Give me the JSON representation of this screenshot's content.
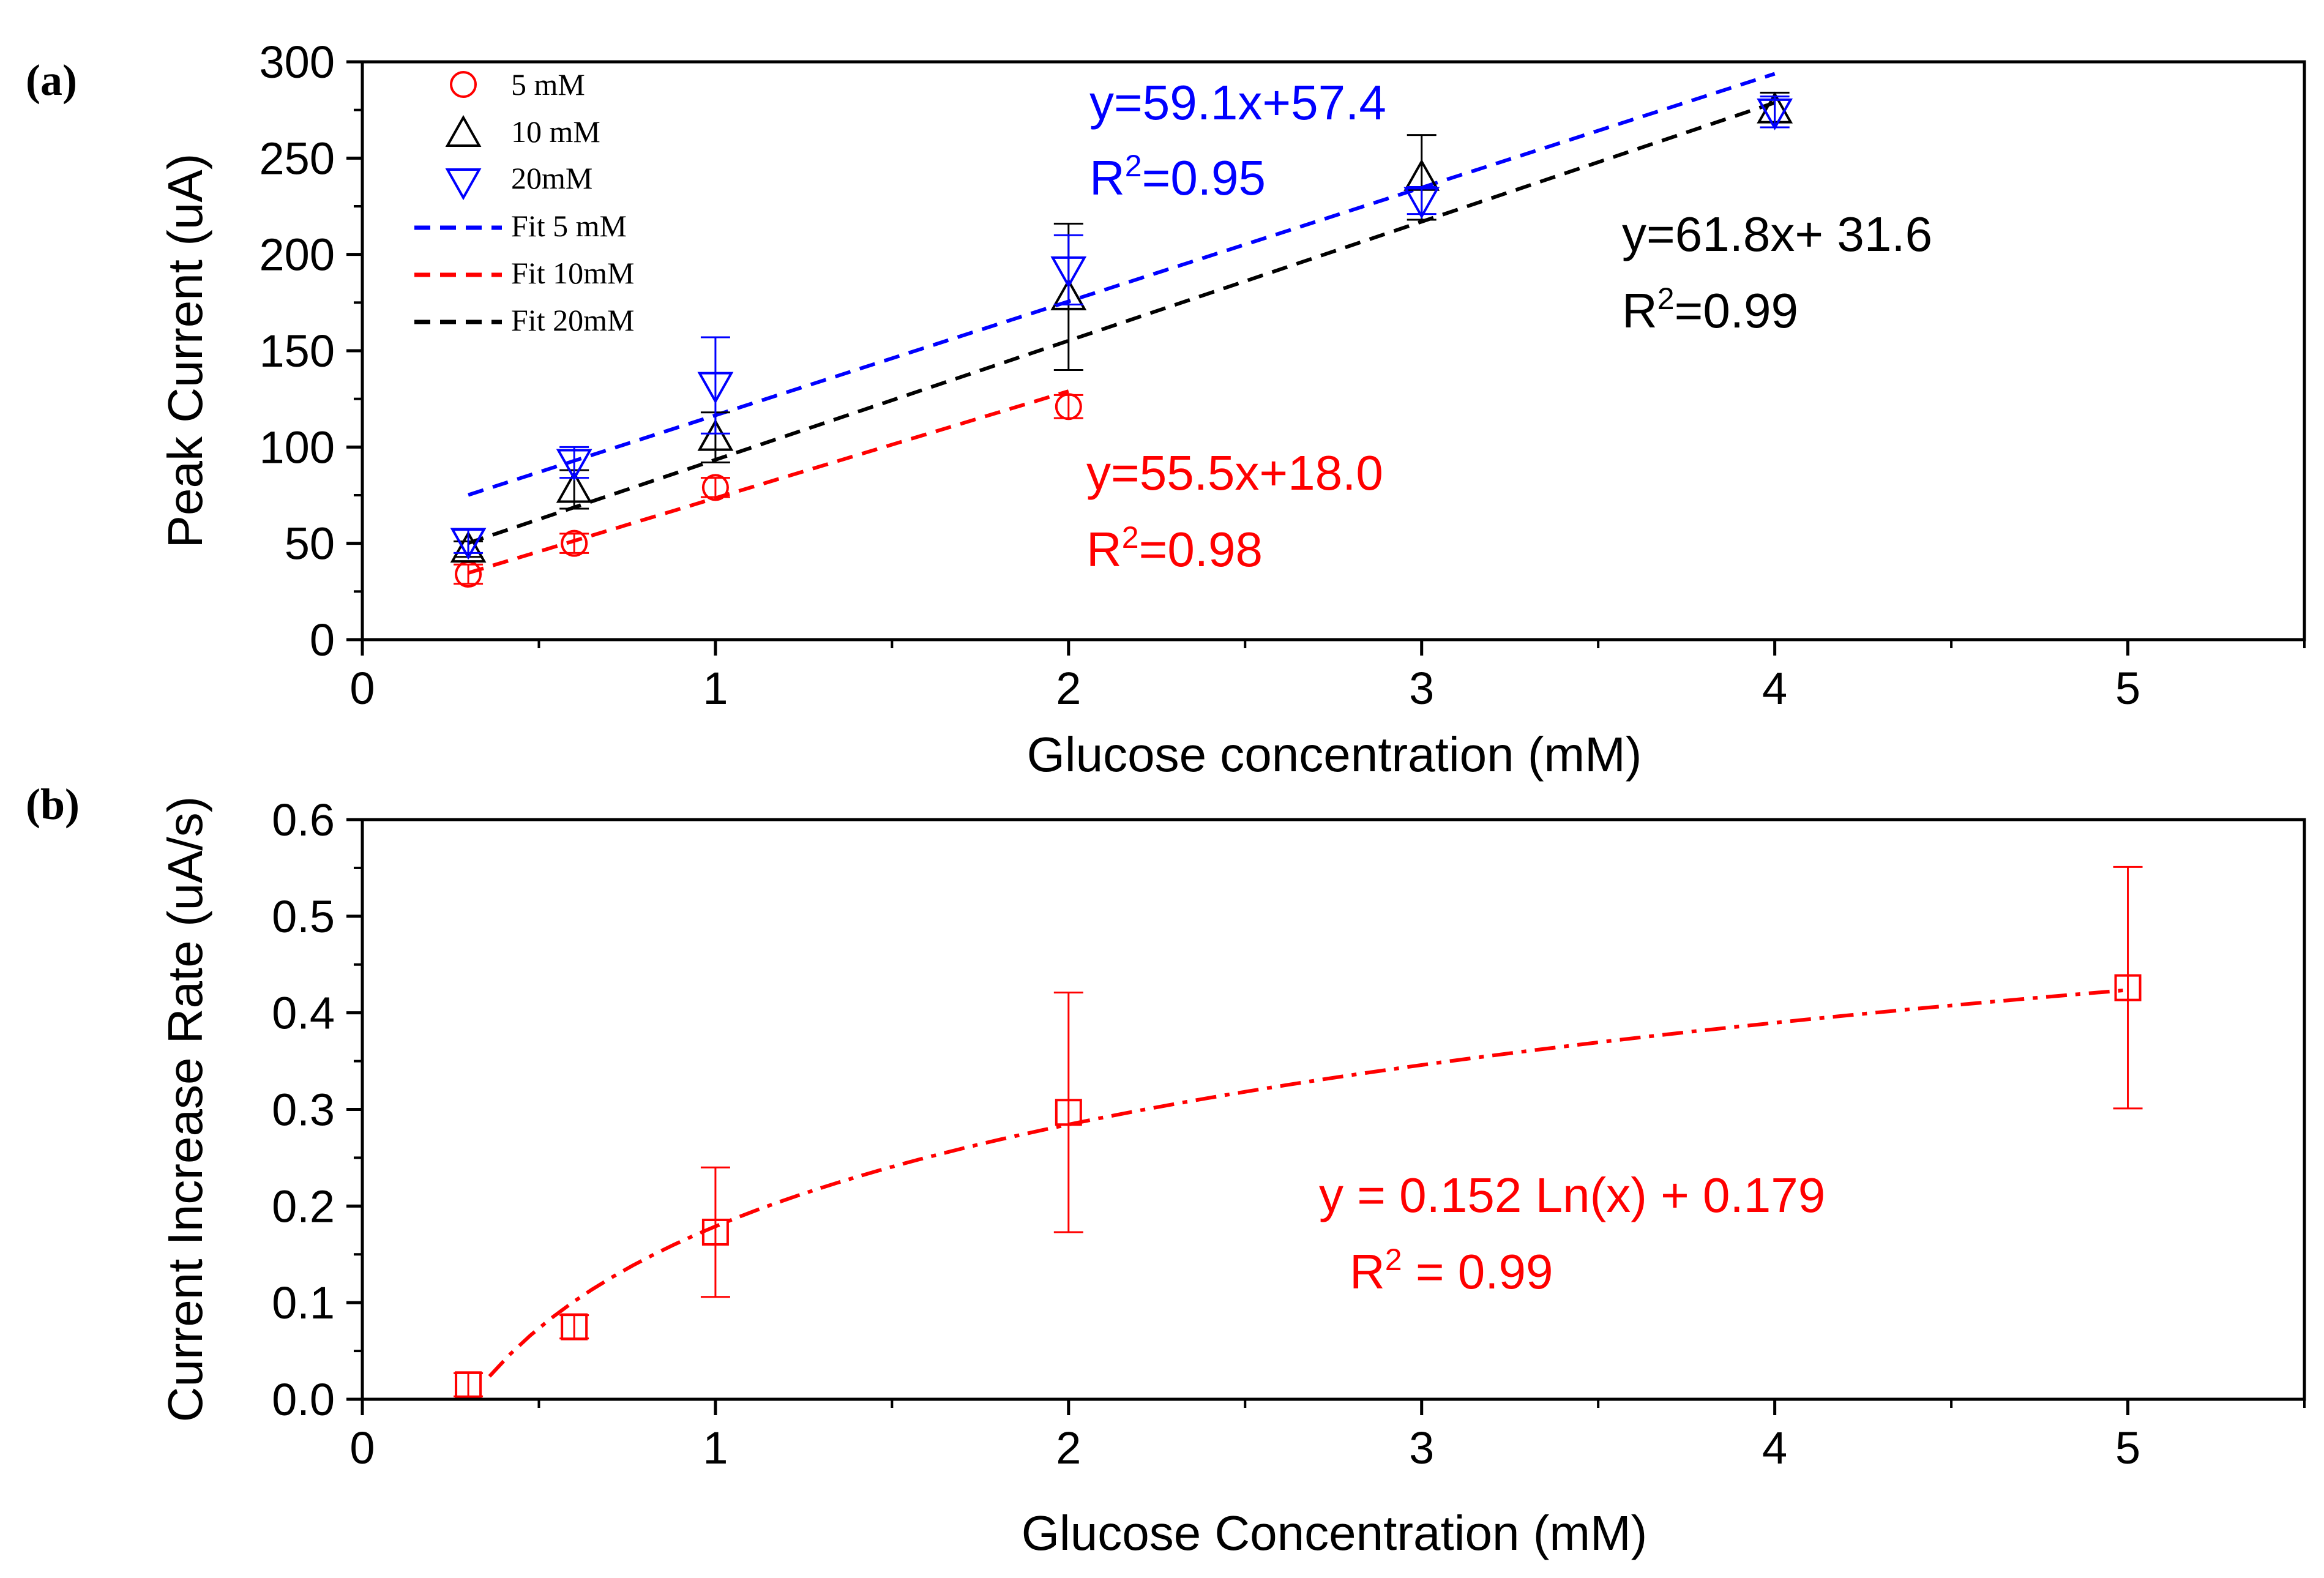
{
  "colors": {
    "red": "#ff0000",
    "black": "#000000",
    "blue": "#0000ff",
    "frame": "#000000",
    "background": "#ffffff"
  },
  "chart_data": [
    {
      "panel_label": "(a)",
      "type": "scatter",
      "title": "",
      "xlabel": "Glucose concentration (mM)",
      "ylabel": "Peak Current (uA)",
      "xlim": [
        0,
        5.5
      ],
      "ylim": [
        0,
        300
      ],
      "xticks": [
        0,
        1,
        2,
        3,
        4,
        5
      ],
      "xtick_labels": [
        "0",
        "1",
        "2",
        "3",
        "4",
        "5"
      ],
      "xminor": [
        0.5,
        1.5,
        2.5,
        3.5,
        4.5,
        5.5
      ],
      "yticks": [
        0,
        50,
        100,
        150,
        200,
        250,
        300
      ],
      "ytick_labels": [
        "0",
        "50",
        "100",
        "150",
        "200",
        "250",
        "300"
      ],
      "yminor": [
        25,
        75,
        125,
        175,
        225,
        275
      ],
      "grid": false,
      "legend_position": "top-left",
      "legend": [
        {
          "label": "5  mM",
          "kind": "marker",
          "marker": "circle",
          "color": "#ff0000"
        },
        {
          "label": "10  mM",
          "kind": "marker",
          "marker": "triangle-up",
          "color": "#000000"
        },
        {
          "label": "20mM",
          "kind": "marker",
          "marker": "triangle-down",
          "color": "#0000ff"
        },
        {
          "label": "Fit 5  mM",
          "kind": "line",
          "color": "#0000ff"
        },
        {
          "label": "Fit 10mM",
          "kind": "line",
          "color": "#ff0000"
        },
        {
          "label": "Fit 20mM",
          "kind": "line",
          "color": "#000000"
        }
      ],
      "series": [
        {
          "name": "5  mM",
          "marker": "circle",
          "color": "#ff0000",
          "x": [
            0.3,
            0.6,
            1,
            2
          ],
          "y": [
            34,
            50,
            79,
            121
          ],
          "err": [
            5,
            5,
            5,
            6
          ]
        },
        {
          "name": "10  mM",
          "marker": "triangle-up",
          "color": "#000000",
          "x": [
            0.3,
            0.6,
            1,
            2,
            3,
            4
          ],
          "y": [
            47,
            78,
            105,
            178,
            240,
            275
          ],
          "err": [
            4,
            10,
            13,
            38,
            22,
            9
          ]
        },
        {
          "name": "20mM",
          "marker": "triangle-down",
          "color": "#0000ff",
          "x": [
            0.3,
            0.6,
            1,
            2,
            3,
            4
          ],
          "y": [
            51,
            92,
            132,
            192,
            228,
            274
          ],
          "err": [
            6,
            8,
            25,
            18,
            7,
            8
          ]
        }
      ],
      "fits": [
        {
          "name": "Fit 5  mM",
          "color": "#0000ff",
          "model": "linear",
          "slope": 59.1,
          "intercept": 57.4,
          "x_range": [
            0.3,
            4
          ]
        },
        {
          "name": "Fit 10mM",
          "color": "#ff0000",
          "model": "linear",
          "slope": 55.5,
          "intercept": 18.0,
          "x_range": [
            0.3,
            2
          ]
        },
        {
          "name": "Fit 20mM",
          "color": "#000000",
          "model": "linear",
          "slope": 61.8,
          "intercept": 31.6,
          "x_range": [
            0.3,
            4
          ]
        }
      ],
      "annotations": [
        {
          "color": "#0000ff",
          "eq": "y=59.1x+57.4",
          "r2": "=0.95"
        },
        {
          "color": "#000000",
          "eq": "y=61.8x+ 31.6",
          "r2": "=0.99"
        },
        {
          "color": "#ff0000",
          "eq": "y=55.5x+18.0",
          "r2": "=0.98"
        }
      ]
    },
    {
      "panel_label": "(b)",
      "type": "scatter",
      "title": "",
      "xlabel": "Glucose Concentration (mM)",
      "ylabel": "Current Increase Rate (uA/s)",
      "xlim": [
        0,
        5.5
      ],
      "ylim": [
        0,
        0.6
      ],
      "xticks": [
        0,
        1,
        2,
        3,
        4,
        5
      ],
      "xtick_labels": [
        "0",
        "1",
        "2",
        "3",
        "4",
        "5"
      ],
      "xminor": [
        0.5,
        1.5,
        2.5,
        3.5,
        4.5,
        5.5
      ],
      "yticks": [
        0,
        0.1,
        0.2,
        0.3,
        0.4,
        0.5,
        0.6
      ],
      "ytick_labels": [
        "0.0",
        "0.1",
        "0.2",
        "0.3",
        "0.4",
        "0.5",
        "0.6"
      ],
      "yminor": [
        0.05,
        0.15,
        0.25,
        0.35,
        0.45,
        0.55
      ],
      "grid": false,
      "series": [
        {
          "name": "rate",
          "marker": "square",
          "color": "#ff0000",
          "x": [
            0.3,
            0.6,
            1,
            2,
            5
          ],
          "y": [
            0.015,
            0.075,
            0.173,
            0.297,
            0.426
          ],
          "err": [
            0.012,
            0.012,
            0.067,
            0.124,
            0.125
          ]
        }
      ],
      "fits": [
        {
          "name": "log fit",
          "color": "#ff0000",
          "model": "log",
          "a": 0.152,
          "b": 0.179,
          "x_range": [
            0.36,
            5
          ]
        }
      ],
      "annotations": [
        {
          "color": "#ff0000",
          "eq": "y = 0.152 Ln(x) + 0.179",
          "r2": " = 0.99"
        }
      ]
    }
  ]
}
